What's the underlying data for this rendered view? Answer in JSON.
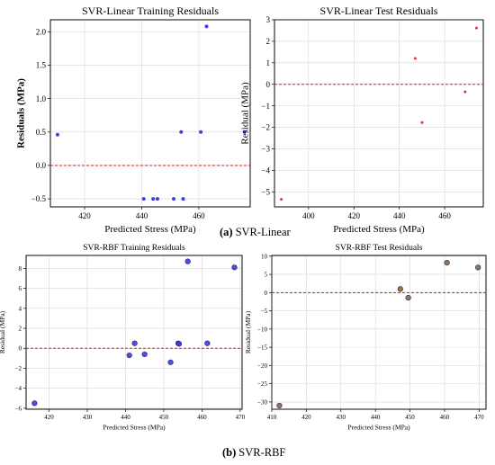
{
  "figure": {
    "caption_a_label": "(a)",
    "caption_a_text": "SVR-Linear",
    "caption_b_label": "(b)",
    "caption_b_text": "SVR-RBF"
  },
  "chart_data": [
    {
      "id": "linear-train",
      "type": "scatter",
      "title": "SVR-Linear Training Residuals",
      "xlabel": "Predicted Stress (MPa)",
      "ylabel": "Residuals (MPa)",
      "xlim": [
        408,
        478
      ],
      "ylim": [
        -0.62,
        2.18
      ],
      "xticks": [
        420,
        440,
        460
      ],
      "yticks": [
        -0.5,
        0.0,
        0.5,
        1.0,
        1.5,
        2.0
      ],
      "ytick_labels": [
        "−0.5",
        "0.0",
        "0.5",
        "1.0",
        "1.5",
        "2.0"
      ],
      "grid": true,
      "zero_line": 0,
      "marker_color": "#2a2ae8",
      "zero_line_color": "#e8141e",
      "series": [
        {
          "x": [
            410.5,
            440.7,
            444.0,
            445.5,
            451.2,
            453.8,
            454.5,
            460.7,
            462.7,
            476.0
          ],
          "y": [
            0.46,
            -0.5,
            -0.5,
            -0.5,
            -0.5,
            0.5,
            -0.5,
            0.5,
            2.08,
            0.5
          ]
        }
      ]
    },
    {
      "id": "linear-test",
      "type": "scatter",
      "title": "SVR-Linear Test Residuals",
      "xlabel": "Predicted Stress (MPa)",
      "ylabel": "Residual (MPa)",
      "xlim": [
        385,
        477
      ],
      "ylim": [
        -5.7,
        3.0
      ],
      "xticks": [
        400,
        420,
        440,
        460
      ],
      "yticks": [
        -5,
        -4,
        -3,
        -2,
        -1,
        0,
        1,
        2,
        3
      ],
      "ytick_labels": [
        "−5",
        "−4",
        "−3",
        "−2",
        "−1",
        "0",
        "1",
        "2",
        "3"
      ],
      "grid": true,
      "zero_line": 0,
      "marker_color": "#e8141e",
      "zero_line_color": "#e8141e",
      "series": [
        {
          "x": [
            388.0,
            447.0,
            450.0,
            469.0,
            474.0
          ],
          "y": [
            -5.35,
            1.2,
            -1.78,
            -0.35,
            2.62
          ]
        }
      ]
    },
    {
      "id": "rbf-train",
      "type": "scatter",
      "title": "SVR-RBF Training Residuals",
      "xlabel": "Predicted Stress (MPa)",
      "ylabel": "Residual (MPa)",
      "xlim": [
        414,
        470.5
      ],
      "ylim": [
        -6.1,
        9.3
      ],
      "xticks": [
        420,
        430,
        440,
        450,
        460,
        470
      ],
      "yticks": [
        -6,
        -4,
        -2,
        0,
        2,
        4,
        6,
        8
      ],
      "ytick_labels": [
        "−6",
        "−4",
        "−2",
        "0",
        "2",
        "4",
        "6",
        "8"
      ],
      "grid": true,
      "zero_line": 0,
      "marker_color": "#3b3be0",
      "zero_line_color": "#e8141e",
      "series": [
        {
          "x": [
            416.2,
            441.0,
            442.4,
            445.0,
            451.8,
            453.8,
            454.0,
            456.3,
            461.4,
            468.5
          ],
          "y": [
            -5.5,
            -0.7,
            0.5,
            -0.6,
            -1.4,
            0.5,
            0.45,
            8.7,
            0.5,
            8.1
          ]
        }
      ]
    },
    {
      "id": "rbf-test",
      "type": "scatter",
      "title": "SVR-RBF Test Residuals",
      "xlabel": "Predicted Stress (MPa)",
      "ylabel": "Residual (MPa)",
      "xlim": [
        410,
        472
      ],
      "ylim": [
        -32,
        10.2
      ],
      "xticks": [
        410,
        420,
        430,
        440,
        450,
        460,
        470
      ],
      "yticks": [
        -30,
        -25,
        -20,
        -15,
        -10,
        -5,
        0,
        5,
        10
      ],
      "ytick_labels": [
        "−30",
        "−25",
        "−20",
        "−15",
        "−10",
        "−5",
        "0",
        "5",
        "10"
      ],
      "grid": true,
      "zero_line": 0,
      "marker_color": "#8a6a3a",
      "zero_line_color": "#c0201e",
      "series": [
        {
          "x": [
            412.2,
            447.2,
            449.5,
            460.7,
            469.7
          ],
          "y": [
            -31.0,
            1.0,
            -1.4,
            8.2,
            6.9
          ]
        }
      ]
    }
  ]
}
